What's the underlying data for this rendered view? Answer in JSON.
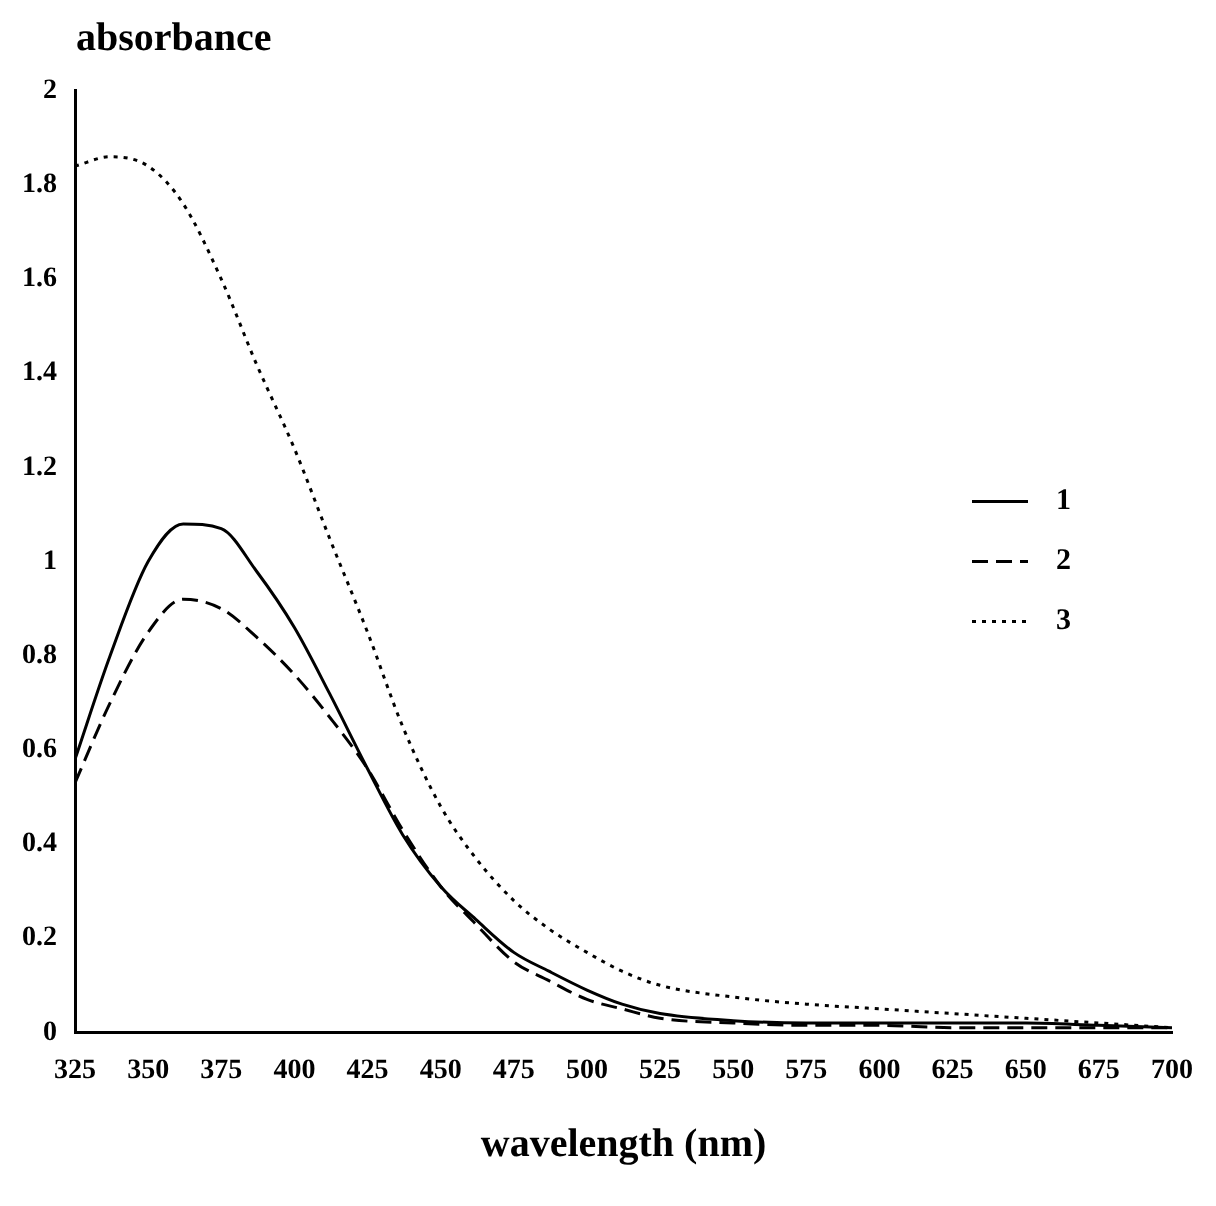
{
  "chart_data": {
    "type": "line",
    "ylabel": "absorbance",
    "xlabel": "wavelength (nm)",
    "xlim": [
      325,
      700
    ],
    "xticks": [
      325,
      350,
      375,
      400,
      425,
      450,
      475,
      500,
      525,
      550,
      575,
      600,
      625,
      650,
      675,
      700
    ],
    "ylim": [
      0,
      2
    ],
    "yticks": [
      0,
      0.2,
      0.4,
      0.6,
      0.8,
      1,
      1.2,
      1.4,
      1.6,
      1.8,
      2
    ],
    "grid": false,
    "legend": "right",
    "marker": "none",
    "x": [
      325,
      337,
      350,
      362,
      375,
      387,
      400,
      412,
      425,
      437,
      450,
      462,
      475,
      487,
      500,
      512,
      525,
      550,
      575,
      600,
      625,
      650,
      675,
      700
    ],
    "series": [
      {
        "name": "1",
        "color": "#000000",
        "line_style": "solid",
        "values": [
          0.58,
          0.8,
          1.0,
          1.08,
          1.07,
          0.98,
          0.86,
          0.72,
          0.56,
          0.42,
          0.31,
          0.24,
          0.17,
          0.13,
          0.09,
          0.06,
          0.04,
          0.025,
          0.02,
          0.02,
          0.02,
          0.02,
          0.015,
          0.01
        ]
      },
      {
        "name": "2",
        "color": "#000000",
        "line_style": "dashed",
        "values": [
          0.53,
          0.7,
          0.85,
          0.92,
          0.9,
          0.84,
          0.76,
          0.67,
          0.56,
          0.43,
          0.31,
          0.23,
          0.15,
          0.11,
          0.07,
          0.05,
          0.03,
          0.02,
          0.015,
          0.015,
          0.01,
          0.01,
          0.01,
          0.01
        ]
      },
      {
        "name": "3",
        "color": "#000000",
        "line_style": "dotted",
        "values": [
          1.84,
          1.86,
          1.84,
          1.76,
          1.6,
          1.42,
          1.24,
          1.05,
          0.85,
          0.65,
          0.48,
          0.37,
          0.28,
          0.22,
          0.17,
          0.13,
          0.1,
          0.075,
          0.06,
          0.05,
          0.04,
          0.03,
          0.02,
          0.01
        ]
      }
    ]
  }
}
